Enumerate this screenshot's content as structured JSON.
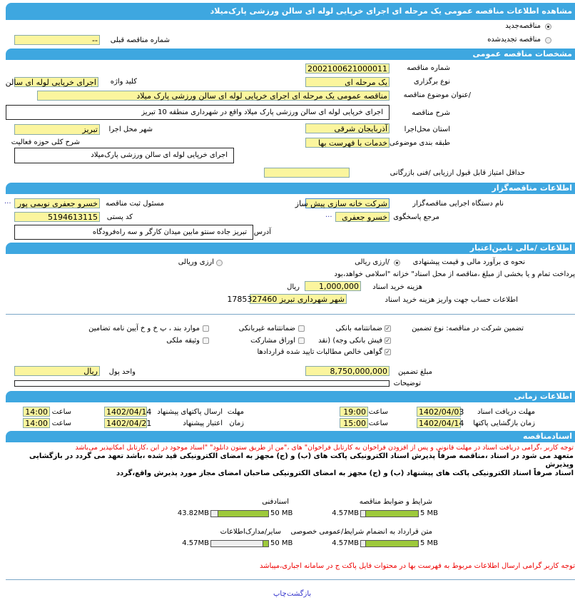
{
  "title": "مشاهده اطلاعات مناقصه  عمومی یک مرحله ای اجرای خرپایی لوله ای سالن ورزشی پارک‌میلاد",
  "tender_type": {
    "new": "مناقصه‌جدید",
    "renewed": "مناقصه تجدیدشده",
    "selected": "new"
  },
  "previous_number": {
    "label": "شماره  مناقصه قبلی",
    "value": "--"
  },
  "general": {
    "header": "مشخصات مناقصه عمومی",
    "number_label": "شماره مناقصه",
    "number": "2002100621000011",
    "holding_label": "نوع برگزاری",
    "holding": "یک مرحله ای",
    "keyword_label": "کلید واژه",
    "keyword": "اجرای خرپایی لوله ای سالن",
    "subject_label": "/عنوان  موضوع مناقصه",
    "subject": "مناقصه عمومی یک مرحله ای اجرای خرپایی لوله ای سالن ورزشی پارک میلاد",
    "desc_label": "شرح مناقصه",
    "desc": "اجرای خرپایی لوله ای سالن ورزشی پارک میلاد واقع در شهرداری منطقه 10 تبریز",
    "province_label": "استان محل‌اجرا",
    "province": "آذربایجان شرقی",
    "city_label": "شهر محل اجرا",
    "city": "تبریز",
    "category_label": "طبقه بندی موضوعی",
    "category": "خدمات با فهرست بها",
    "activity_label": "شرح کلی حوزه فعالیت",
    "activity": "اجرای خرپایی لوله ای سالن ورزشی پارک‌میلاد",
    "min_score_label": "حداقل امتیاز قابل قبول ارزیابی /فنی بازرگانی",
    "min_score": ""
  },
  "organizer": {
    "header": "اطلاعات مناقصه‌گزار",
    "org_label": "نام دستگاه اجرایی  مناقصه‌گزار",
    "org": "شرکت خانه سازی پیش ساز",
    "registrar_label": "مسئول ثبت مناقصه",
    "registrar": "خسرو جعفری نویمی پور",
    "ref_label": "مرجع پاسخگوی",
    "ref": "خسرو جعفری",
    "postal_label": "کد پستی",
    "postal": "5194613115",
    "address_label": "آدرس",
    "address": "تبریز جاده سنتو مابین میدان کارگر و سه راه‌فرودگاه",
    "more": "..."
  },
  "finance": {
    "header": "اطلاعات /مالی تامین‌اعتبار",
    "estimate_label": "نحوه ی برآورد مالی و قیمت پیشنهادی",
    "opt_rial": "/ارزی ریالی",
    "opt_fx": "ارزی وریالی",
    "selected": "rial",
    "payment_note": "پرداخت تمام و یا بخشی از مبلغ ،مناقصه از محل اسناد\" خزانه \"اسلامی خواهد،بود",
    "doc_fee_label": "هزینه خرید اسناد",
    "doc_fee": "1,000,000",
    "currency_rial": "ریال",
    "account_label": "اطلاعات حساب جهت واریز هزینه خرید اسناد",
    "account": "شهر شهرداری تبریز 1785327460",
    "guarantee_label": "تضمین شرکت در مناقصه:  نوع  تضمین",
    "guarantees": [
      {
        "label": "ضمانتنامه  بانکی",
        "checked": true
      },
      {
        "label": "ضمانتنامه  غیربانکی",
        "checked": false
      },
      {
        "label": "موارد بند ، پ خ و خ آیین نامه تضامین",
        "checked": false
      },
      {
        "label": "فیش  بانکی وجه) (نقد",
        "checked": true
      },
      {
        "label": "اوراق  مشارکت",
        "checked": false
      },
      {
        "label": "وثیقه ملکی",
        "checked": false
      },
      {
        "label": "گواهی  خالص مطالبات تایید شده قراردادها",
        "checked": true
      }
    ],
    "amount_label": "مبلغ تضمین",
    "amount": "8,750,000,000",
    "unit_label": "واحد پول",
    "unit": "ریال",
    "notes_label": "توضیحات",
    "notes": ""
  },
  "timing": {
    "header": "اطلاعات زمانی",
    "time_label": "ساعت",
    "doc_deadline_label": "مهلت  دریافت اسناد",
    "doc_deadline": "1402/04/03",
    "doc_deadline_time": "19:00",
    "submit_label_a": "مهلت",
    "submit_label_b": "ارسال  پاکتهای پیشنهاد",
    "submit": "1402/04/14",
    "submit_time": "14:00",
    "open_label": "زمان  بازگشایی پاکتها",
    "open": "1402/04/14",
    "open_time": "15:00",
    "validity_label_a": "زمان",
    "validity_label_b": "اعتبار پیشنهاد",
    "validity": "1402/04/21",
    "validity_time": "14:00"
  },
  "documents": {
    "header": "اسنادمناقصه",
    "note1": "توجه کاربر ،گرامی دریافت اسناد در مهلت قانونی و پس از افزودن فراخوان به کارتابل فراخوان\" های ،\"من از طریق ستون دانلود\" \"اسناد موجود در این ،کارتابل امکانپذیر می‌باشد",
    "commit1": "متعهد می شود در اسناد ،مناقصه صرفاً پذیرش اسناد الکترونیکی پاکت های (ب) و (ج) مجهز به امضای الکترونیکی قید شده ،باشد تعهد می گردد در بازگشایی وپذیرش",
    "commit2": "اسناد صرفاً اسناد الکترونیکی پاکت های پیشنهاد (ب) و (ج) مجهز به امضای الکترونیکی صاحبان امضای مجاز مورد پذیرش واقع،گردد",
    "files": [
      {
        "label": "شرایط و  ضوابط مناقصه",
        "used": "4.57MB",
        "max": "5 MB",
        "fraction": 0.914
      },
      {
        "label": "اسنادفنی",
        "used": "43.82MB",
        "max": "50 MB",
        "fraction": 0.876
      },
      {
        "label": "متن قرارداد به  انضمام شرایط/عمومی خصوصی",
        "used": "4.57MB",
        "max": "5 MB",
        "fraction": 0.914
      },
      {
        "label": "سایر/مدارک‌اطلاعات",
        "used": "4.57MB",
        "max": "50 MB",
        "fraction": 0.091
      }
    ],
    "note2": "توجه کاربر گرامی ارسال اطلاعات مربوط به فهرست بها در محتوات فایل پاکت ج در سامانه  اجباری،میباشد"
  },
  "footer": {
    "print": "چاپ",
    "back": "بازگشت"
  }
}
